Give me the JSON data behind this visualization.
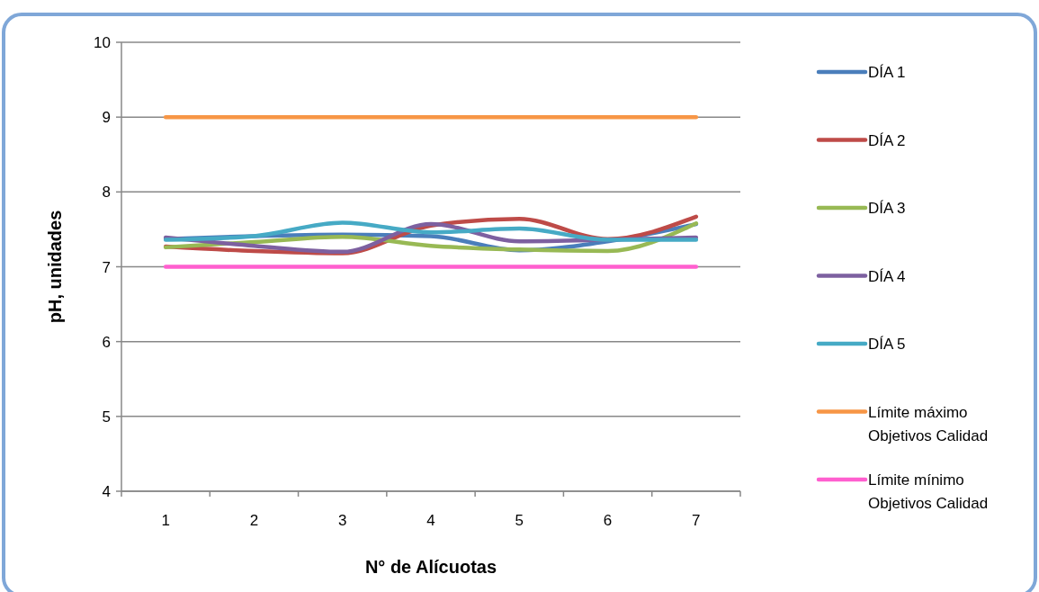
{
  "chart_data": {
    "type": "line",
    "xlabel": "N° de Alícuotas",
    "ylabel": "pH, unidades",
    "categories": [
      "1",
      "2",
      "3",
      "4",
      "5",
      "6",
      "7"
    ],
    "series": [
      {
        "name": "DÍA 1",
        "color": "#4a7ebb",
        "values": [
          7.37,
          7.41,
          7.43,
          7.41,
          7.22,
          7.34,
          7.57
        ]
      },
      {
        "name": "DÍA 2",
        "color": "#be4b48",
        "values": [
          7.27,
          7.21,
          7.18,
          7.55,
          7.64,
          7.37,
          7.67
        ]
      },
      {
        "name": "DÍA 3",
        "color": "#98b954",
        "values": [
          7.26,
          7.33,
          7.4,
          7.28,
          7.23,
          7.21,
          7.58
        ]
      },
      {
        "name": "DÍA 4",
        "color": "#7d60a0",
        "values": [
          7.39,
          7.28,
          7.2,
          7.57,
          7.34,
          7.36,
          7.39
        ]
      },
      {
        "name": "DÍA 5",
        "color": "#46aac5",
        "values": [
          7.36,
          7.41,
          7.59,
          7.46,
          7.51,
          7.36,
          7.36
        ]
      },
      {
        "name": "Límite máximo Objetivos Calidad",
        "color": "#f79646",
        "values": [
          9,
          9,
          9,
          9,
          9,
          9,
          9
        ]
      },
      {
        "name": "Límite mínimo Objetivos Calidad",
        "color": "#ff5fcf",
        "values": [
          7,
          7,
          7,
          7,
          7,
          7,
          7
        ]
      }
    ],
    "ylim": [
      4,
      10
    ],
    "yticks": [
      4,
      5,
      6,
      7,
      8,
      9,
      10
    ],
    "grid": "y",
    "legend": "right",
    "marker": "none",
    "line_style": "solid"
  }
}
